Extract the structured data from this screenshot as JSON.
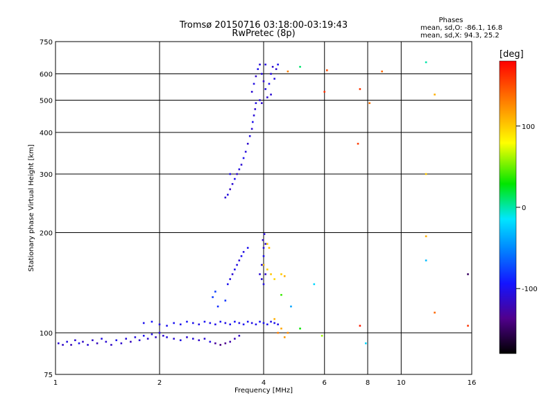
{
  "chart_data": {
    "type": "scatter",
    "title": "Tromsø 20150716 03:18:00-03:19:43",
    "subtitle": "RwPretec (8p)",
    "xlabel": "Frequency [MHz]",
    "ylabel": "Stationary phase Virtual Height [km]",
    "x_scale": "log",
    "y_scale": "log",
    "xlim": [
      1,
      16
    ],
    "ylim": [
      75,
      750
    ],
    "x_ticks": [
      1,
      2,
      4,
      6,
      8,
      10,
      16
    ],
    "x_tick_labels": [
      "1",
      "2",
      "4",
      "6",
      "8",
      "10",
      "16"
    ],
    "y_ticks": [
      75,
      100,
      200,
      300,
      400,
      500,
      600,
      750
    ],
    "y_tick_labels": [
      "75",
      "100",
      "200",
      "300",
      "400",
      "500",
      "600",
      "750"
    ],
    "grid": true,
    "stats": {
      "heading": "Phases",
      "line_o": "mean, sd,O: -86.1, 16.8",
      "line_x": "mean, sd,X: 94.3, 25.2"
    },
    "colorbar": {
      "label": "[deg]",
      "range": [
        -180,
        180
      ],
      "ticks": [
        100,
        0,
        -100
      ],
      "tick_labels": [
        "100",
        "0",
        "-100"
      ]
    },
    "series": [
      {
        "points": [
          [
            1.02,
            93,
            -110
          ],
          [
            1.05,
            92,
            -115
          ],
          [
            1.08,
            94,
            -105
          ],
          [
            1.11,
            92,
            -120
          ],
          [
            1.14,
            95,
            -110
          ],
          [
            1.17,
            93,
            -100
          ],
          [
            1.2,
            94,
            -115
          ],
          [
            1.24,
            92,
            -108
          ],
          [
            1.28,
            95,
            -112
          ],
          [
            1.32,
            93,
            -118
          ],
          [
            1.36,
            96,
            -105
          ],
          [
            1.4,
            94,
            -110
          ],
          [
            1.45,
            92,
            -115
          ],
          [
            1.5,
            95,
            -100
          ],
          [
            1.55,
            93,
            -112
          ],
          [
            1.6,
            96,
            -108
          ],
          [
            1.65,
            94,
            -118
          ],
          [
            1.7,
            97,
            -105
          ],
          [
            1.75,
            95,
            -110
          ],
          [
            1.8,
            98,
            -100
          ],
          [
            1.85,
            96,
            -112
          ],
          [
            1.9,
            99,
            -105
          ],
          [
            1.95,
            97,
            -115
          ],
          [
            2.0,
            100,
            -108
          ],
          [
            2.05,
            98,
            -112
          ],
          [
            2.1,
            97,
            -106
          ],
          [
            2.2,
            96,
            -110
          ],
          [
            2.3,
            95,
            -104
          ],
          [
            2.4,
            97,
            -112
          ],
          [
            2.5,
            96,
            -108
          ],
          [
            2.6,
            95,
            -115
          ],
          [
            2.7,
            96,
            -110
          ],
          [
            2.8,
            94,
            -105
          ],
          [
            2.9,
            93,
            -130
          ],
          [
            3.0,
            92,
            -140
          ],
          [
            3.1,
            93,
            -135
          ],
          [
            3.2,
            94,
            -125
          ],
          [
            3.3,
            96,
            -120
          ],
          [
            3.4,
            98,
            -115
          ]
        ]
      },
      {
        "points": [
          [
            1.8,
            107,
            -100
          ],
          [
            1.9,
            108,
            -95
          ],
          [
            2.0,
            106,
            -105
          ],
          [
            2.1,
            105,
            -100
          ],
          [
            2.2,
            107,
            -98
          ],
          [
            2.3,
            106,
            -102
          ],
          [
            2.4,
            108,
            -96
          ],
          [
            2.5,
            107,
            -100
          ],
          [
            2.6,
            106,
            -104
          ],
          [
            2.7,
            108,
            -98
          ],
          [
            2.8,
            107,
            -100
          ],
          [
            2.9,
            106,
            -102
          ],
          [
            3.0,
            108,
            -98
          ],
          [
            3.1,
            107,
            -104
          ],
          [
            3.2,
            106,
            -100
          ],
          [
            3.3,
            108,
            -96
          ],
          [
            3.4,
            107,
            -102
          ],
          [
            3.5,
            106,
            -100
          ],
          [
            3.6,
            108,
            -98
          ],
          [
            3.7,
            107,
            -104
          ],
          [
            3.8,
            106,
            -100
          ],
          [
            3.9,
            108,
            -96
          ],
          [
            4.0,
            107,
            -100
          ],
          [
            4.1,
            106,
            -98
          ],
          [
            4.2,
            108,
            -104
          ],
          [
            4.3,
            107,
            -100
          ],
          [
            4.4,
            106,
            -102
          ]
        ]
      },
      {
        "points": [
          [
            2.85,
            128,
            -80
          ],
          [
            2.9,
            133,
            -78
          ],
          [
            2.95,
            120,
            -85
          ],
          [
            3.1,
            125,
            -82
          ],
          [
            3.15,
            140,
            -100
          ],
          [
            3.2,
            145,
            -105
          ],
          [
            3.25,
            150,
            -110
          ],
          [
            3.3,
            155,
            -100
          ],
          [
            3.35,
            160,
            -105
          ],
          [
            3.4,
            165,
            -110
          ],
          [
            3.45,
            170,
            -100
          ],
          [
            3.5,
            175,
            -105
          ],
          [
            3.6,
            180,
            -100
          ]
        ]
      },
      {
        "points": [
          [
            3.9,
            150,
            -110
          ],
          [
            3.95,
            160,
            -105
          ],
          [
            4.0,
            170,
            -100
          ],
          [
            4.0,
            180,
            -110
          ],
          [
            3.98,
            190,
            -115
          ],
          [
            4.02,
            198,
            -108
          ],
          [
            4.05,
            185,
            -112
          ],
          [
            4.0,
            160,
            -100
          ],
          [
            3.95,
            145,
            -110
          ],
          [
            4.0,
            140,
            -105
          ],
          [
            4.05,
            150,
            -112
          ]
        ]
      },
      {
        "points": [
          [
            4.1,
            185,
            100
          ],
          [
            4.15,
            180,
            105
          ],
          [
            4.0,
            160,
            100
          ],
          [
            4.1,
            155,
            98
          ],
          [
            4.2,
            150,
            102
          ],
          [
            4.3,
            145,
            96
          ],
          [
            4.5,
            150,
            100
          ],
          [
            4.6,
            148,
            110
          ],
          [
            4.3,
            110,
            110
          ],
          [
            4.5,
            103,
            115
          ],
          [
            4.6,
            97,
            120
          ],
          [
            4.7,
            100,
            125
          ],
          [
            4.5,
            130,
            40
          ],
          [
            4.8,
            120,
            -40
          ],
          [
            5.1,
            103,
            30
          ],
          [
            4.4,
            100,
            130
          ]
        ]
      },
      {
        "points": [
          [
            3.1,
            255,
            -110
          ],
          [
            3.15,
            260,
            -105
          ],
          [
            3.2,
            270,
            -115
          ],
          [
            3.25,
            280,
            -110
          ],
          [
            3.3,
            290,
            -100
          ],
          [
            3.35,
            300,
            -112
          ],
          [
            3.4,
            310,
            -105
          ],
          [
            3.45,
            320,
            -110
          ],
          [
            3.5,
            335,
            -100
          ],
          [
            3.55,
            350,
            -108
          ],
          [
            3.6,
            370,
            -112
          ],
          [
            3.65,
            390,
            -105
          ],
          [
            3.7,
            410,
            -110
          ],
          [
            3.72,
            430,
            -100
          ],
          [
            3.75,
            450,
            -108
          ],
          [
            3.78,
            470,
            -112
          ],
          [
            3.8,
            490,
            -105
          ],
          [
            3.2,
            300,
            -100
          ]
        ]
      },
      {
        "points": [
          [
            3.7,
            530,
            -110
          ],
          [
            3.75,
            560,
            -105
          ],
          [
            3.8,
            590,
            -115
          ],
          [
            3.85,
            620,
            -100
          ],
          [
            3.9,
            640,
            -110
          ],
          [
            3.95,
            600,
            -108
          ],
          [
            4.0,
            570,
            -112
          ],
          [
            4.05,
            540,
            -105
          ],
          [
            4.1,
            510,
            -110
          ],
          [
            4.15,
            560,
            -100
          ],
          [
            4.2,
            600,
            -108
          ],
          [
            4.25,
            630,
            -112
          ],
          [
            4.3,
            580,
            -105
          ],
          [
            4.35,
            620,
            -110
          ],
          [
            4.4,
            640,
            -100
          ],
          [
            3.9,
            500,
            -108
          ],
          [
            3.95,
            490,
            -112
          ],
          [
            4.05,
            640,
            -105
          ],
          [
            4.2,
            520,
            -110
          ]
        ]
      },
      {
        "points": [
          [
            4.7,
            610,
            130
          ],
          [
            5.1,
            630,
            10
          ],
          [
            6.1,
            615,
            150
          ],
          [
            6.0,
            530,
            160
          ],
          [
            7.6,
            540,
            160
          ],
          [
            7.5,
            370,
            155
          ],
          [
            8.1,
            490,
            135
          ],
          [
            8.8,
            610,
            140
          ],
          [
            11.8,
            650,
            0
          ],
          [
            11.8,
            300,
            100
          ],
          [
            12.5,
            520,
            110
          ],
          [
            11.8,
            195,
            110
          ],
          [
            11.8,
            165,
            -30
          ],
          [
            12.5,
            115,
            140
          ],
          [
            15.6,
            150,
            -150
          ],
          [
            15.6,
            105,
            160
          ],
          [
            7.6,
            105,
            170
          ],
          [
            7.9,
            93,
            -20
          ],
          [
            5.6,
            140,
            -20
          ],
          [
            5.9,
            98,
            60
          ]
        ]
      }
    ]
  }
}
